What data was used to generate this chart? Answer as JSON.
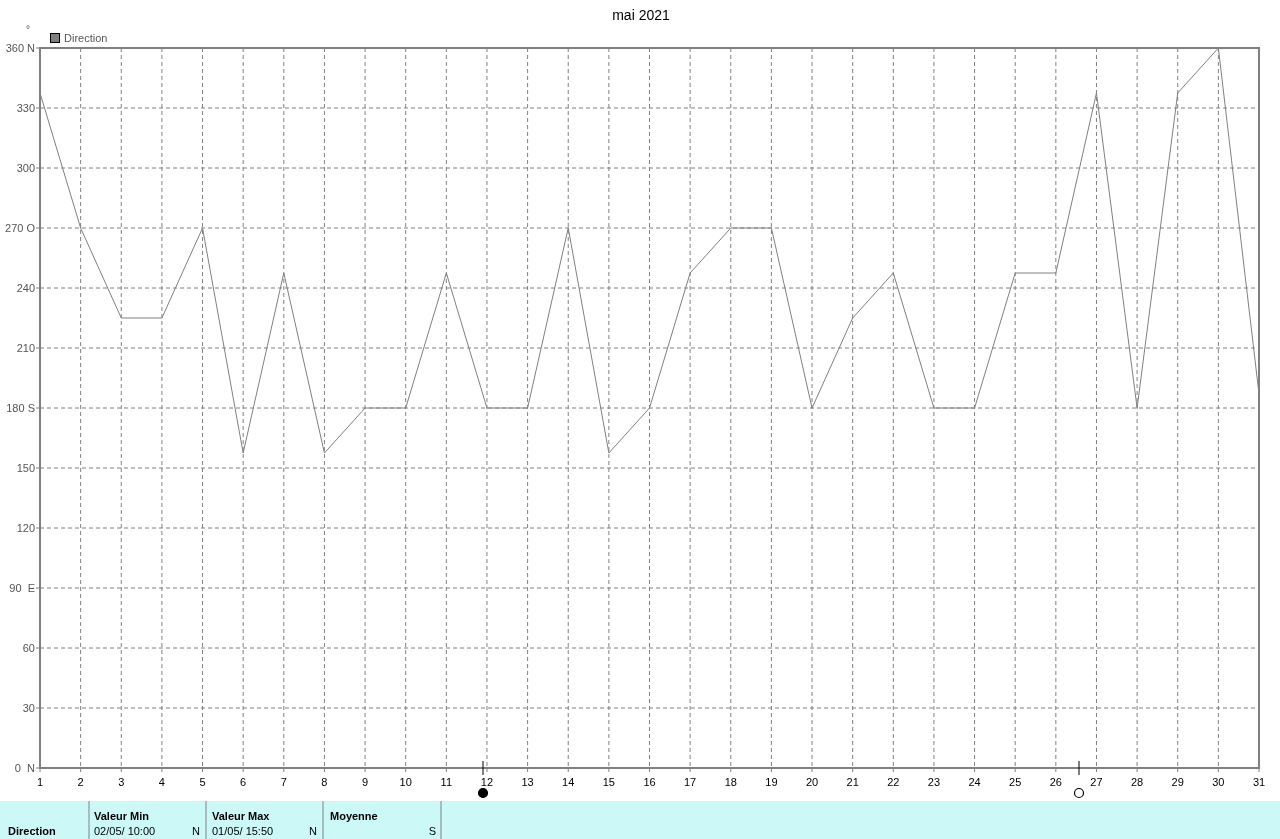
{
  "chart_data": {
    "type": "line",
    "title": "mai 2021",
    "ylabel": "°",
    "x": [
      1,
      2,
      3,
      4,
      5,
      6,
      7,
      8,
      9,
      10,
      11,
      12,
      13,
      14,
      15,
      16,
      17,
      18,
      19,
      20,
      21,
      22,
      23,
      24,
      25,
      26,
      27,
      28,
      29,
      30,
      31
    ],
    "series": [
      {
        "name": "Direction",
        "color": "#808080",
        "values": [
          337.5,
          270,
          225,
          225,
          270,
          157.5,
          247.5,
          157.5,
          180,
          180,
          247.5,
          180,
          180,
          270,
          157.5,
          180,
          247.5,
          270,
          270,
          180,
          225,
          247.5,
          180,
          180,
          247.5,
          247.5,
          337.5,
          180,
          337.5,
          360,
          187
        ]
      }
    ],
    "xlim": [
      1,
      31
    ],
    "xticks": [
      1,
      2,
      3,
      4,
      5,
      6,
      7,
      8,
      9,
      10,
      11,
      12,
      13,
      14,
      15,
      16,
      17,
      18,
      19,
      20,
      21,
      22,
      23,
      24,
      25,
      26,
      27,
      28,
      29,
      30,
      31
    ],
    "ylim": [
      0,
      360
    ],
    "yticks": [
      {
        "value": 0,
        "label": "0  N"
      },
      30,
      60,
      {
        "value": 90,
        "label": "90  E"
      },
      120,
      150,
      {
        "value": 180,
        "label": "180 S"
      },
      210,
      240,
      {
        "value": 270,
        "label": "270 O"
      },
      300,
      330,
      {
        "value": 360,
        "label": "360 N"
      }
    ],
    "grid": true,
    "legend": "top left",
    "annotations": [
      "Direction",
      "Valeur Min",
      "02/05/ 10:00",
      "N",
      "Valeur Max",
      "01/05/ 15:50",
      "N",
      "Moyenne",
      "S"
    ]
  }
}
